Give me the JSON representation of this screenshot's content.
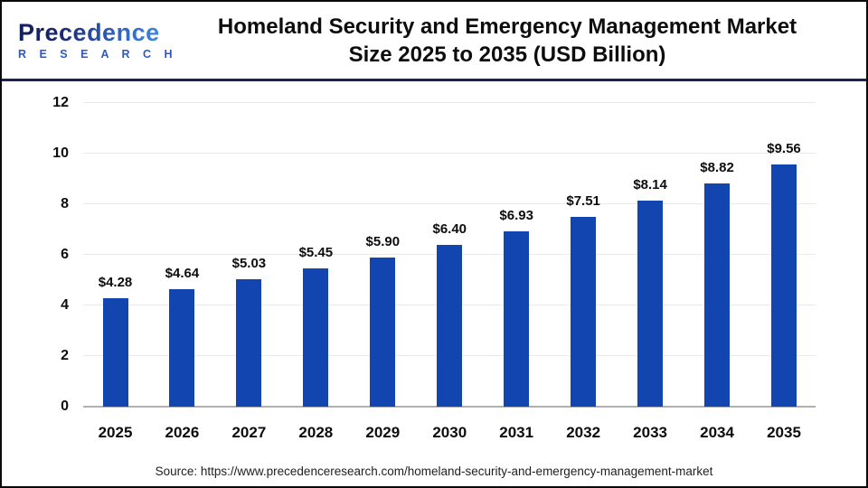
{
  "header": {
    "logo_line1": "Precedence",
    "logo_line2": "R E S E A R C H",
    "title_line1": "Homeland Security and Emergency Management Market",
    "title_line2": "Size 2025 to 2035 (USD Billion)"
  },
  "chart_data": {
    "type": "bar",
    "title": "Homeland Security and Emergency Management Market Size 2025 to 2035 (USD Billion)",
    "categories": [
      "2025",
      "2026",
      "2027",
      "2028",
      "2029",
      "2030",
      "2031",
      "2032",
      "2033",
      "2034",
      "2035"
    ],
    "values": [
      4.28,
      4.64,
      5.03,
      5.45,
      5.9,
      6.4,
      6.93,
      7.51,
      8.14,
      8.82,
      9.56
    ],
    "value_labels": [
      "$4.28",
      "$4.64",
      "$5.03",
      "$5.45",
      "$5.90",
      "$6.40",
      "$6.93",
      "$7.51",
      "$8.14",
      "$8.82",
      "$9.56"
    ],
    "xlabel": "",
    "ylabel": "",
    "ylim": [
      0,
      12
    ],
    "yticks": [
      0,
      2,
      4,
      6,
      8,
      10,
      12
    ],
    "grid": true,
    "legend": "none",
    "bar_color": "#1245b0"
  },
  "colors": {
    "bar": "#1245b0",
    "gridline": "#eaeaea",
    "baseline": "#b0b0b0",
    "header_divider": "#1a2355",
    "logo_navy": "#121f5e",
    "logo_blue": "#3d85dc",
    "research_text": "#2b59c8",
    "title_text": "#0d0d0d"
  },
  "footer": {
    "source": "Source: https://www.precedenceresearch.com/homeland-security-and-emergency-management-market"
  }
}
